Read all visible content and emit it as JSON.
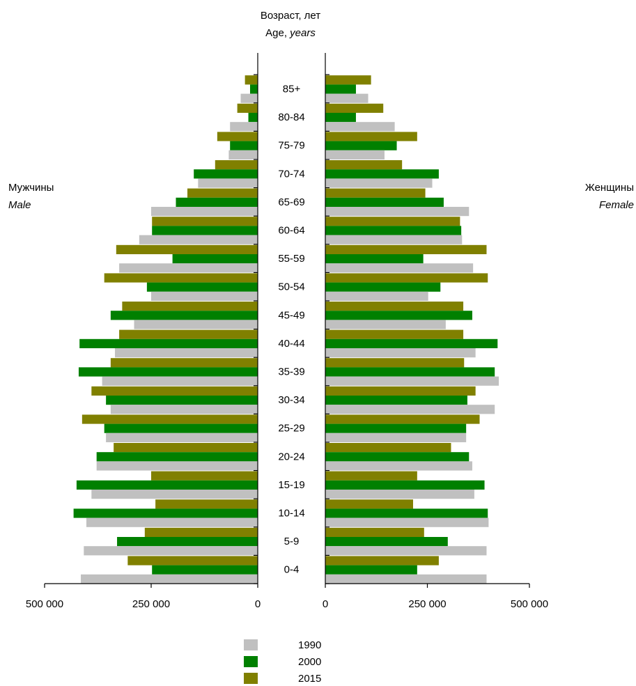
{
  "chart_data": {
    "type": "bar",
    "orientation": "horizontal-population-pyramid",
    "y_title": {
      "ru": "Возраст, лет",
      "en_prefix": "Age, ",
      "en_italic": "years"
    },
    "left_side": {
      "ru": "Мужчины",
      "en": "Male"
    },
    "right_side": {
      "ru": "Женщины",
      "en": "Female"
    },
    "x_range": [
      0,
      500000
    ],
    "left_ticks": [
      "500 000",
      "250 000",
      "0"
    ],
    "right_ticks": [
      "0",
      "250 000",
      "500 000"
    ],
    "categories": [
      "0-4",
      "5-9",
      "10-14",
      "15-19",
      "20-24",
      "25-29",
      "30-34",
      "35-39",
      "40-44",
      "45-49",
      "50-54",
      "55-59",
      "60-64",
      "65-69",
      "70-74",
      "75-79",
      "80-84",
      "85+"
    ],
    "series": [
      {
        "name": "1990",
        "color": "#c0c0c0",
        "male": [
          415000,
          408000,
          402000,
          390000,
          378000,
          356000,
          345000,
          365000,
          335000,
          290000,
          250000,
          325000,
          278000,
          250000,
          140000,
          68000,
          65000,
          40000
        ],
        "female": [
          395000,
          395000,
          400000,
          365000,
          360000,
          345000,
          415000,
          425000,
          368000,
          295000,
          252000,
          362000,
          335000,
          352000,
          262000,
          145000,
          170000,
          105000
        ]
      },
      {
        "name": "2000",
        "color": "#008000",
        "male": [
          248000,
          330000,
          432000,
          425000,
          378000,
          360000,
          356000,
          420000,
          418000,
          345000,
          260000,
          200000,
          248000,
          192000,
          150000,
          65000,
          22000,
          18000
        ],
        "female": [
          225000,
          300000,
          398000,
          390000,
          352000,
          345000,
          348000,
          415000,
          422000,
          360000,
          282000,
          240000,
          333000,
          290000,
          278000,
          175000,
          75000,
          75000
        ]
      },
      {
        "name": "2015",
        "color": "#808000",
        "male": [
          305000,
          265000,
          240000,
          250000,
          338000,
          412000,
          390000,
          345000,
          325000,
          318000,
          360000,
          332000,
          248000,
          165000,
          100000,
          95000,
          48000,
          30000
        ],
        "female": [
          278000,
          242000,
          215000,
          225000,
          308000,
          378000,
          368000,
          340000,
          338000,
          338000,
          398000,
          395000,
          330000,
          245000,
          188000,
          225000,
          142000,
          112000
        ]
      }
    ],
    "legend": {
      "position": "bottom-center",
      "entries": [
        "1990",
        "2000",
        "2015"
      ]
    }
  }
}
